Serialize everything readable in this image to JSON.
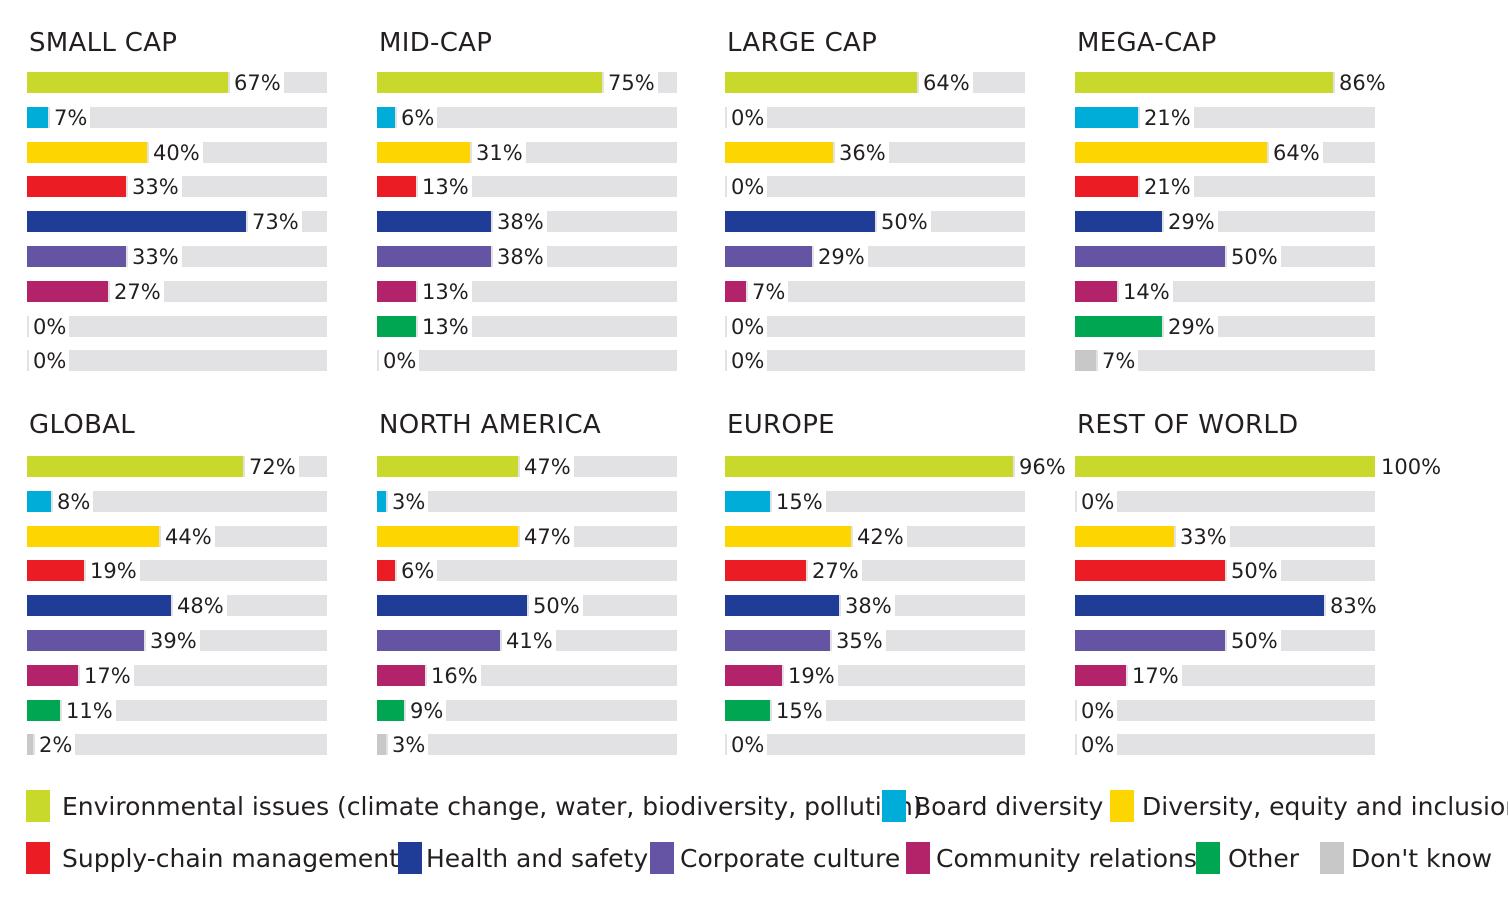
{
  "colors": {
    "env": "#c8d92b",
    "board": "#00acd8",
    "dei": "#fdd500",
    "supply": "#ec1c24",
    "health": "#1f3c97",
    "culture": "#6554a4",
    "community": "#b3236a",
    "other": "#00a651",
    "dontknow": "#c8c8c8"
  },
  "chart_data": {
    "type": "bar",
    "categories": [
      "Environmental issues (climate change, water, biodiversity, pollution)",
      "Board diversity",
      "Diversity, equity and inclusion",
      "Supply-chain management",
      "Health and safety",
      "Corporate culture",
      "Community relations",
      "Other",
      "Don't know"
    ],
    "keys": [
      "env",
      "board",
      "dei",
      "supply",
      "health",
      "culture",
      "community",
      "other",
      "dontknow"
    ],
    "xlim": [
      0,
      100
    ],
    "unit": "%",
    "panels": [
      {
        "title": "SMALL CAP",
        "values": [
          67,
          7,
          40,
          33,
          73,
          33,
          27,
          0,
          0
        ]
      },
      {
        "title": "MID-CAP",
        "values": [
          75,
          6,
          31,
          13,
          38,
          38,
          13,
          13,
          0
        ]
      },
      {
        "title": "LARGE CAP",
        "values": [
          64,
          0,
          36,
          0,
          50,
          29,
          7,
          0,
          0
        ]
      },
      {
        "title": "MEGA-CAP",
        "values": [
          86,
          21,
          64,
          21,
          29,
          50,
          14,
          29,
          7
        ]
      },
      {
        "title": "GLOBAL",
        "values": [
          72,
          8,
          44,
          19,
          48,
          39,
          17,
          11,
          2
        ]
      },
      {
        "title": "NORTH AMERICA",
        "values": [
          47,
          3,
          47,
          6,
          50,
          41,
          16,
          9,
          3
        ]
      },
      {
        "title": "EUROPE",
        "values": [
          96,
          15,
          42,
          27,
          38,
          35,
          19,
          15,
          0
        ]
      },
      {
        "title": "REST OF WORLD",
        "values": [
          100,
          0,
          33,
          50,
          83,
          50,
          17,
          0,
          0
        ]
      }
    ],
    "legend_position": "bottom"
  }
}
